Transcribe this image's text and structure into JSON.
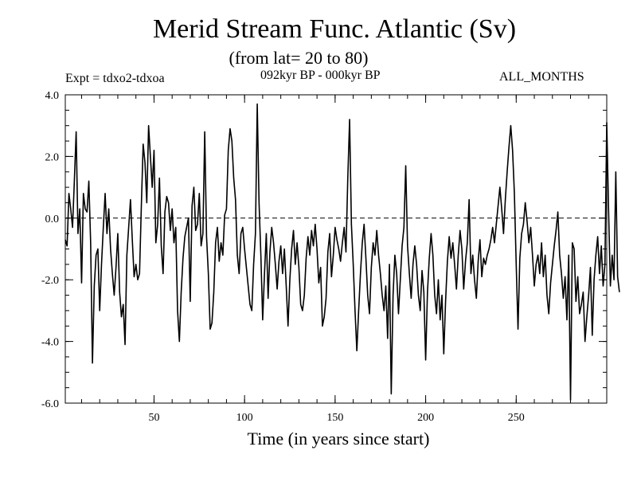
{
  "chart_data": {
    "type": "line",
    "title": "Merid Stream Func. Atlantic (Sv)",
    "subtitle": "(from lat= 20 to 80)",
    "experiment_label": "Expt = tdxo2-tdxoa",
    "period_label": "092kyr BP - 000kyr BP",
    "months_label": "ALL_MONTHS",
    "xlabel": "Time (in years since start)",
    "ylabel": "",
    "xlim": [
      1,
      300
    ],
    "ylim": [
      -6.0,
      4.0
    ],
    "x_ticks": [
      50,
      100,
      150,
      200,
      250
    ],
    "x_tick_labels": [
      "50",
      "100",
      "150",
      "200",
      "250"
    ],
    "y_ticks": [
      -6,
      -4,
      -2,
      0,
      2,
      4
    ],
    "y_tick_labels": [
      "-6.0",
      "-4.0",
      "-2.0",
      "0.0",
      "2.0",
      "4.0"
    ],
    "reference_line": 0.0,
    "line_color": "#000000",
    "grid": false,
    "series": [
      {
        "x_start": 1,
        "x_step": 1,
        "values": [
          -0.7,
          -0.9,
          0.8,
          0.3,
          -0.3,
          1.2,
          2.8,
          -0.5,
          0.3,
          -2.1,
          0.8,
          0.3,
          0.2,
          1.2,
          -0.8,
          -4.7,
          -2.2,
          -1.2,
          -1.0,
          -3.0,
          -1.5,
          -0.3,
          0.8,
          -0.5,
          0.3,
          -1.0,
          -1.8,
          -2.5,
          -1.6,
          -0.5,
          -2.4,
          -3.2,
          -2.8,
          -4.1,
          -1.2,
          -0.3,
          0.6,
          -0.7,
          -1.9,
          -1.5,
          -2.0,
          -1.8,
          0.4,
          2.4,
          1.8,
          0.5,
          3.0,
          2.0,
          1.0,
          2.2,
          -0.8,
          -0.2,
          1.3,
          -0.9,
          -1.8,
          0.2,
          0.7,
          0.5,
          -0.4,
          0.3,
          -0.8,
          -0.3,
          -3.0,
          -4.0,
          -2.4,
          -1.3,
          -0.6,
          -0.3,
          0.0,
          -2.7,
          0.4,
          1.0,
          -0.4,
          -0.2,
          0.8,
          -0.9,
          -0.5,
          2.8,
          -0.6,
          -1.8,
          -3.6,
          -3.4,
          -2.4,
          -0.8,
          -0.3,
          -1.4,
          -0.8,
          -1.2,
          0.1,
          0.3,
          2.2,
          2.9,
          2.5,
          1.3,
          0.6,
          -1.2,
          -1.8,
          -0.5,
          -0.3,
          -1.0,
          -1.6,
          -2.2,
          -2.8,
          -3.0,
          -1.5,
          -0.5,
          3.7,
          0.5,
          -1.2,
          -3.3,
          -1.8,
          -0.5,
          -2.6,
          -1.1,
          -0.3,
          -0.8,
          -1.5,
          -2.3,
          -1.4,
          -0.9,
          -1.8,
          -1.0,
          -2.2,
          -3.5,
          -2.0,
          -1.0,
          -0.4,
          -1.5,
          -0.8,
          -1.6,
          -2.8,
          -3.0,
          -2.5,
          -1.3,
          -0.6,
          -1.2,
          -0.4,
          -0.9,
          -0.2,
          -1.0,
          -2.1,
          -1.6,
          -3.5,
          -3.2,
          -2.6,
          -1.1,
          -0.5,
          -1.9,
          -1.2,
          -0.3,
          -0.7,
          -1.0,
          -1.4,
          -0.8,
          -0.3,
          -1.1,
          1.3,
          3.2,
          -0.2,
          -1.5,
          -3.0,
          -4.3,
          -3.0,
          -1.8,
          -0.8,
          -0.2,
          -1.3,
          -2.5,
          -3.1,
          -1.6,
          -0.8,
          -1.2,
          -0.4,
          -1.2,
          -1.8,
          -2.5,
          -3.0,
          -2.2,
          -3.9,
          -1.5,
          -5.7,
          -2.5,
          -1.2,
          -1.8,
          -3.1,
          -2.0,
          -0.9,
          -0.3,
          1.7,
          -0.9,
          -1.8,
          -2.6,
          -1.5,
          -0.9,
          -1.5,
          -2.5,
          -3.0,
          -1.7,
          -2.4,
          -4.6,
          -2.4,
          -1.3,
          -0.5,
          -1.2,
          -2.5,
          -3.1,
          -2.0,
          -3.3,
          -2.5,
          -4.4,
          -2.7,
          -1.4,
          -0.6,
          -1.3,
          -0.8,
          -1.5,
          -2.3,
          -1.2,
          -0.4,
          -1.0,
          -2.3,
          -1.4,
          -0.8,
          0.6,
          -1.8,
          -1.2,
          -2.0,
          -2.6,
          -1.4,
          -0.7,
          -1.9,
          -1.3,
          -1.5,
          -1.2,
          -1.0,
          -0.7,
          -0.3,
          -0.8,
          -0.2,
          0.4,
          1.0,
          0.3,
          -0.5,
          0.6,
          1.5,
          2.3,
          3.0,
          2.2,
          0.8,
          -1.5,
          -3.6,
          -1.3,
          -0.5,
          -0.2,
          0.5,
          -0.1,
          -0.8,
          -0.3,
          -1.2,
          -2.2,
          -1.5,
          -1.2,
          -1.8,
          -0.8,
          -1.9,
          -1.2,
          -2.5,
          -3.1,
          -2.1,
          -1.5,
          -0.9,
          -0.4,
          0.2,
          -1.2,
          -1.8,
          -2.6,
          -1.9,
          -3.3,
          -1.2,
          -5.9,
          -0.8,
          -1.0,
          -2.7,
          -1.9,
          -3.1,
          -2.8,
          -2.4,
          -4.0,
          -3.2,
          -2.5,
          -1.6,
          -3.8,
          -2.0,
          -1.2,
          -0.6,
          -1.8,
          -0.9,
          -2.2,
          -1.5,
          3.1,
          0.3,
          -2.2,
          -1.2,
          -2.0,
          1.5,
          -1.9,
          -2.4
        ]
      }
    ]
  }
}
